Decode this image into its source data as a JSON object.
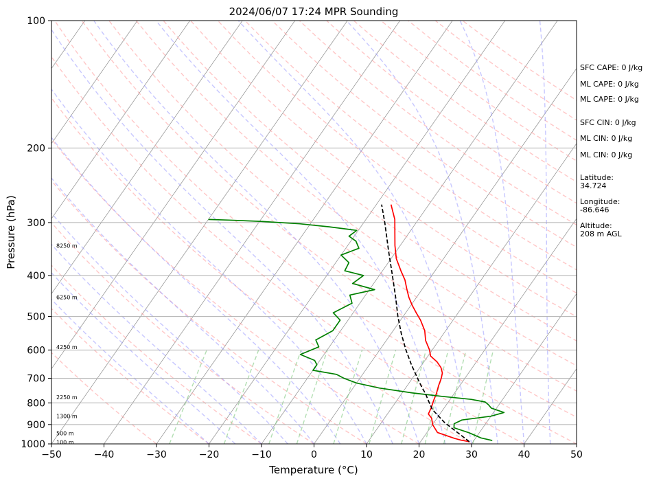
{
  "chart_data": {
    "type": "line",
    "title": "2024/06/07 17:24 MPR Sounding",
    "xlabel": "Temperature (°C)",
    "ylabel": "Pressure (hPa)",
    "x_ticks": [
      -50,
      -40,
      -30,
      -20,
      -10,
      0,
      10,
      20,
      30,
      40,
      50
    ],
    "x_tick_labels": [
      "−50",
      "−40",
      "−30",
      "−20",
      "−10",
      "0",
      "10",
      "20",
      "30",
      "40",
      "50"
    ],
    "y_ticks": [
      1000,
      900,
      800,
      700,
      600,
      500,
      400,
      300,
      200,
      100
    ],
    "y_tick_labels": [
      "1000",
      "900",
      "800",
      "700",
      "600",
      "500",
      "400",
      "300",
      "200",
      "100"
    ],
    "xlim": [
      -50,
      50
    ],
    "ylim": [
      1000,
      100
    ],
    "y_scale": "log",
    "grid": true,
    "colors": {
      "temperature": "#ff0000",
      "dewpoint": "#008000",
      "parcel": "#000000",
      "dry_adiabats": "#ff9999",
      "moist_adiabats": "#9999ff",
      "mixing_ratio": "#88cc88",
      "isotherms": "#999999"
    },
    "series": [
      {
        "key": "temperature",
        "points": [
          [
            -17.2,
            272
          ],
          [
            -14.5,
            295
          ],
          [
            -12.5,
            320
          ],
          [
            -11.0,
            340
          ],
          [
            -9.0,
            365
          ],
          [
            -6.5,
            390
          ],
          [
            -4.5,
            410
          ],
          [
            -3.0,
            430
          ],
          [
            -1.5,
            450
          ],
          [
            0.2,
            470
          ],
          [
            2.0,
            490
          ],
          [
            3.8,
            510
          ],
          [
            6.0,
            540
          ],
          [
            7.5,
            570
          ],
          [
            9.5,
            600
          ],
          [
            10.5,
            620
          ],
          [
            12.5,
            640
          ],
          [
            14.0,
            660
          ],
          [
            15.0,
            680
          ],
          [
            15.5,
            700
          ],
          [
            16.0,
            730
          ],
          [
            16.6,
            760
          ],
          [
            17.0,
            790
          ],
          [
            17.5,
            820
          ],
          [
            17.8,
            850
          ],
          [
            19.0,
            870
          ],
          [
            20.0,
            900
          ],
          [
            21.0,
            920
          ],
          [
            22.0,
            940
          ],
          [
            24.0,
            955
          ],
          [
            26.0,
            970
          ],
          [
            27.5,
            980
          ],
          [
            29.3,
            988
          ]
        ]
      },
      {
        "key": "dewpoint",
        "points": [
          [
            -50.0,
            295
          ],
          [
            -46.0,
            296
          ],
          [
            -40.0,
            298
          ],
          [
            -32.0,
            302
          ],
          [
            -26.0,
            307
          ],
          [
            -20.3,
            313
          ],
          [
            -21.0,
            323
          ],
          [
            -19.0,
            332
          ],
          [
            -17.5,
            345
          ],
          [
            -20.0,
            358
          ],
          [
            -17.5,
            373
          ],
          [
            -17.2,
            390
          ],
          [
            -13.0,
            400
          ],
          [
            -14.0,
            418
          ],
          [
            -9.0,
            432
          ],
          [
            -13.0,
            445
          ],
          [
            -11.5,
            465
          ],
          [
            -13.8,
            490
          ],
          [
            -11.5,
            510
          ],
          [
            -11.5,
            540
          ],
          [
            -13.5,
            568
          ],
          [
            -12.0,
            590
          ],
          [
            -14.5,
            615
          ],
          [
            -11.0,
            635
          ],
          [
            -10.0,
            650
          ],
          [
            -10.0,
            670
          ],
          [
            -5.0,
            685
          ],
          [
            -3.0,
            700
          ],
          [
            0.0,
            718
          ],
          [
            5.0,
            738
          ],
          [
            12.0,
            758
          ],
          [
            18.0,
            772
          ],
          [
            24.0,
            785
          ],
          [
            27.0,
            796
          ],
          [
            28.0,
            808
          ],
          [
            29.0,
            823
          ],
          [
            32.0,
            843
          ],
          [
            30.0,
            860
          ],
          [
            25.0,
            878
          ],
          [
            24.0,
            896
          ],
          [
            24.5,
            916
          ],
          [
            28.0,
            941
          ],
          [
            31.0,
            968
          ],
          [
            33.5,
            982
          ]
        ]
      },
      {
        "key": "parcel",
        "points": [
          [
            29.3,
            988
          ],
          [
            22.0,
            890
          ],
          [
            18.0,
            830
          ],
          [
            16.0,
            790
          ],
          [
            14.5,
            760
          ],
          [
            13.0,
            735
          ],
          [
            11.0,
            700
          ],
          [
            8.0,
            650
          ],
          [
            5.0,
            600
          ],
          [
            2.0,
            550
          ],
          [
            -1.0,
            500
          ],
          [
            -4.0,
            450
          ],
          [
            -7.5,
            400
          ],
          [
            -11.5,
            350
          ],
          [
            -16.0,
            300
          ],
          [
            -19.0,
            272
          ]
        ]
      }
    ],
    "height_labels": [
      {
        "text": "8250 m",
        "p": 340
      },
      {
        "text": "6250 m",
        "p": 450
      },
      {
        "text": "4250 m",
        "p": 590
      },
      {
        "text": "2250 m",
        "p": 775
      },
      {
        "text": "1300 m",
        "p": 860
      },
      {
        "text": "500 m",
        "p": 944
      },
      {
        "text": "100 m",
        "p": 990
      }
    ],
    "annotations": [
      "SFC CAPE: 0 J/kg",
      "ML CAPE: 0 J/kg",
      "ML CAPE: 0 J/kg",
      "SFC CIN: 0 J/kg",
      "ML CIN: 0 J/kg",
      "ML CIN: 0 J/kg",
      "Latitude:",
      "34.724",
      "Longitude:",
      "-86.646",
      "Altitude:",
      "208 m AGL"
    ]
  }
}
